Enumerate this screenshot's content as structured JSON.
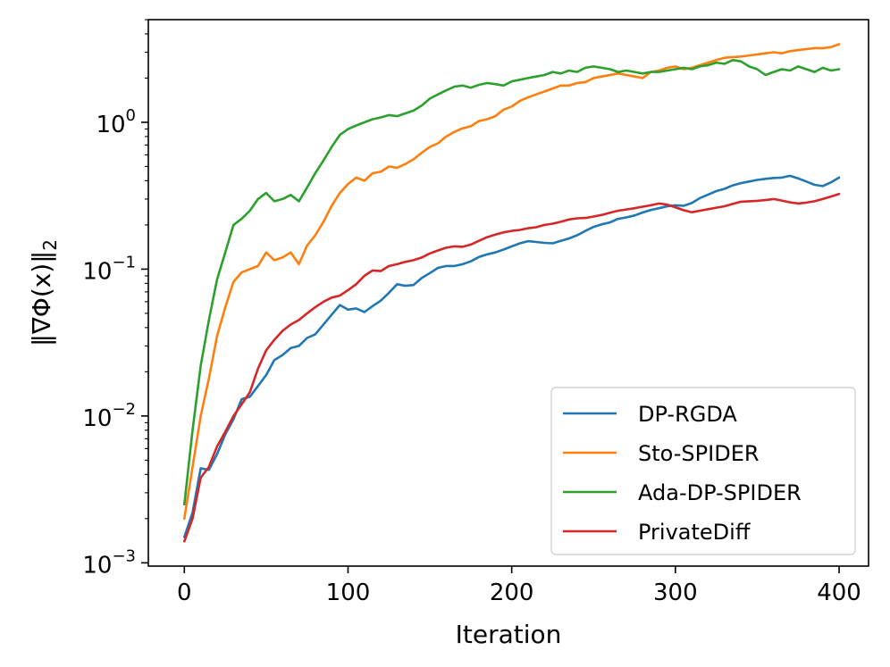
{
  "chart_data": {
    "type": "line",
    "xlabel": "Iteration",
    "ylabel": "‖∇Φ(x)‖",
    "ylabel_sub": "2",
    "xscale": "linear",
    "yscale": "log",
    "xlim": [
      -22,
      418
    ],
    "ylim": [
      0.00095,
      5.0
    ],
    "xticks": [
      0,
      100,
      200,
      300,
      400
    ],
    "xtick_labels": [
      "0",
      "100",
      "200",
      "300",
      "400"
    ],
    "yticks": [
      {
        "value": 0.001,
        "base": "10",
        "exp": "−3"
      },
      {
        "value": 0.01,
        "base": "10",
        "exp": "−2"
      },
      {
        "value": 0.1,
        "base": "10",
        "exp": "−1"
      },
      {
        "value": 1,
        "base": "10",
        "exp": "0"
      }
    ],
    "legend_position": "lower-right",
    "grid": false,
    "series": [
      {
        "name": "DP-RGDA",
        "color": "#1f77b4",
        "x": [
          0,
          5,
          10,
          15,
          20,
          25,
          30,
          35,
          40,
          45,
          50,
          55,
          60,
          65,
          70,
          75,
          80,
          85,
          90,
          95,
          100,
          105,
          110,
          115,
          120,
          125,
          130,
          135,
          140,
          145,
          150,
          155,
          160,
          165,
          170,
          175,
          180,
          185,
          190,
          195,
          200,
          205,
          210,
          215,
          220,
          225,
          230,
          235,
          240,
          245,
          250,
          255,
          260,
          265,
          270,
          275,
          280,
          285,
          290,
          295,
          300,
          305,
          310,
          315,
          320,
          325,
          330,
          335,
          340,
          345,
          350,
          355,
          360,
          365,
          370,
          375,
          380,
          385,
          390,
          395,
          400
        ],
        "y": [
          0.0015,
          0.0022,
          0.0044,
          0.0043,
          0.0055,
          0.0075,
          0.0095,
          0.013,
          0.0135,
          0.016,
          0.019,
          0.024,
          0.026,
          0.029,
          0.03,
          0.034,
          0.036,
          0.042,
          0.049,
          0.057,
          0.053,
          0.054,
          0.051,
          0.056,
          0.061,
          0.069,
          0.079,
          0.077,
          0.078,
          0.087,
          0.094,
          0.102,
          0.105,
          0.105,
          0.108,
          0.113,
          0.121,
          0.126,
          0.13,
          0.136,
          0.143,
          0.15,
          0.155,
          0.153,
          0.151,
          0.15,
          0.156,
          0.162,
          0.17,
          0.182,
          0.194,
          0.202,
          0.208,
          0.22,
          0.225,
          0.232,
          0.243,
          0.253,
          0.26,
          0.268,
          0.272,
          0.27,
          0.282,
          0.305,
          0.322,
          0.34,
          0.352,
          0.372,
          0.385,
          0.395,
          0.405,
          0.412,
          0.418,
          0.42,
          0.432,
          0.415,
          0.395,
          0.375,
          0.368,
          0.39,
          0.42
        ]
      },
      {
        "name": "Sto-SPIDER",
        "color": "#ff7f0e",
        "x": [
          0,
          5,
          10,
          15,
          20,
          25,
          30,
          35,
          40,
          45,
          50,
          55,
          60,
          65,
          70,
          75,
          80,
          85,
          90,
          95,
          100,
          105,
          110,
          115,
          120,
          125,
          130,
          135,
          140,
          145,
          150,
          155,
          160,
          165,
          170,
          175,
          180,
          185,
          190,
          195,
          200,
          205,
          210,
          215,
          220,
          225,
          230,
          235,
          240,
          245,
          250,
          255,
          260,
          265,
          270,
          275,
          280,
          285,
          290,
          295,
          300,
          305,
          310,
          315,
          320,
          325,
          330,
          335,
          340,
          345,
          350,
          355,
          360,
          365,
          370,
          375,
          380,
          385,
          390,
          395,
          400
        ],
        "y": [
          0.002,
          0.0045,
          0.01,
          0.018,
          0.035,
          0.055,
          0.082,
          0.095,
          0.1,
          0.105,
          0.13,
          0.115,
          0.12,
          0.13,
          0.108,
          0.145,
          0.17,
          0.21,
          0.27,
          0.33,
          0.38,
          0.42,
          0.4,
          0.45,
          0.46,
          0.5,
          0.49,
          0.52,
          0.56,
          0.62,
          0.68,
          0.72,
          0.8,
          0.86,
          0.91,
          0.94,
          1.02,
          1.05,
          1.1,
          1.22,
          1.28,
          1.4,
          1.48,
          1.55,
          1.62,
          1.7,
          1.78,
          1.78,
          1.85,
          1.88,
          2.0,
          2.05,
          2.1,
          2.15,
          2.1,
          2.05,
          2.0,
          2.2,
          2.25,
          2.35,
          2.4,
          2.3,
          2.35,
          2.45,
          2.55,
          2.65,
          2.75,
          2.78,
          2.8,
          2.85,
          2.9,
          2.95,
          3.0,
          2.95,
          3.05,
          3.1,
          3.15,
          3.2,
          3.2,
          3.25,
          3.4
        ]
      },
      {
        "name": "Ada-DP-SPIDER",
        "color": "#2ca02c",
        "x": [
          0,
          5,
          10,
          15,
          20,
          25,
          30,
          35,
          40,
          45,
          50,
          55,
          60,
          65,
          70,
          75,
          80,
          85,
          90,
          95,
          100,
          105,
          110,
          115,
          120,
          125,
          130,
          135,
          140,
          145,
          150,
          155,
          160,
          165,
          170,
          175,
          180,
          185,
          190,
          195,
          200,
          205,
          210,
          215,
          220,
          225,
          230,
          235,
          240,
          245,
          250,
          255,
          260,
          265,
          270,
          275,
          280,
          285,
          290,
          295,
          300,
          305,
          310,
          315,
          320,
          325,
          330,
          335,
          340,
          345,
          350,
          355,
          360,
          365,
          370,
          375,
          380,
          385,
          390,
          395,
          400
        ],
        "y": [
          0.0025,
          0.008,
          0.022,
          0.045,
          0.085,
          0.13,
          0.2,
          0.22,
          0.25,
          0.3,
          0.33,
          0.29,
          0.3,
          0.32,
          0.29,
          0.36,
          0.45,
          0.55,
          0.68,
          0.82,
          0.9,
          0.95,
          1.0,
          1.05,
          1.08,
          1.12,
          1.1,
          1.15,
          1.2,
          1.3,
          1.45,
          1.55,
          1.65,
          1.75,
          1.78,
          1.72,
          1.8,
          1.85,
          1.82,
          1.78,
          1.9,
          1.95,
          2.0,
          2.05,
          2.1,
          2.2,
          2.15,
          2.25,
          2.2,
          2.35,
          2.4,
          2.35,
          2.3,
          2.2,
          2.25,
          2.2,
          2.15,
          2.2,
          2.2,
          2.25,
          2.3,
          2.35,
          2.3,
          2.4,
          2.45,
          2.55,
          2.5,
          2.65,
          2.6,
          2.4,
          2.3,
          2.1,
          2.2,
          2.3,
          2.25,
          2.4,
          2.3,
          2.2,
          2.35,
          2.25,
          2.3
        ]
      },
      {
        "name": "PrivateDiff",
        "color": "#d62728",
        "x": [
          0,
          5,
          10,
          15,
          20,
          25,
          30,
          35,
          40,
          45,
          50,
          55,
          60,
          65,
          70,
          75,
          80,
          85,
          90,
          95,
          100,
          105,
          110,
          115,
          120,
          125,
          130,
          135,
          140,
          145,
          150,
          155,
          160,
          165,
          170,
          175,
          180,
          185,
          190,
          195,
          200,
          205,
          210,
          215,
          220,
          225,
          230,
          235,
          240,
          245,
          250,
          255,
          260,
          265,
          270,
          275,
          280,
          285,
          290,
          295,
          300,
          305,
          310,
          315,
          320,
          325,
          330,
          335,
          340,
          345,
          350,
          355,
          360,
          365,
          370,
          375,
          380,
          385,
          390,
          395,
          400
        ],
        "y": [
          0.0014,
          0.002,
          0.0038,
          0.0045,
          0.0062,
          0.0078,
          0.01,
          0.012,
          0.0145,
          0.021,
          0.028,
          0.033,
          0.038,
          0.042,
          0.045,
          0.05,
          0.055,
          0.06,
          0.064,
          0.066,
          0.072,
          0.079,
          0.09,
          0.098,
          0.097,
          0.105,
          0.108,
          0.112,
          0.115,
          0.12,
          0.128,
          0.134,
          0.14,
          0.143,
          0.142,
          0.147,
          0.156,
          0.165,
          0.172,
          0.178,
          0.182,
          0.185,
          0.19,
          0.193,
          0.2,
          0.204,
          0.21,
          0.218,
          0.222,
          0.223,
          0.228,
          0.234,
          0.242,
          0.25,
          0.255,
          0.26,
          0.266,
          0.272,
          0.28,
          0.275,
          0.264,
          0.252,
          0.244,
          0.25,
          0.256,
          0.262,
          0.268,
          0.278,
          0.288,
          0.29,
          0.292,
          0.295,
          0.3,
          0.293,
          0.285,
          0.28,
          0.284,
          0.29,
          0.3,
          0.312,
          0.325
        ]
      }
    ]
  }
}
